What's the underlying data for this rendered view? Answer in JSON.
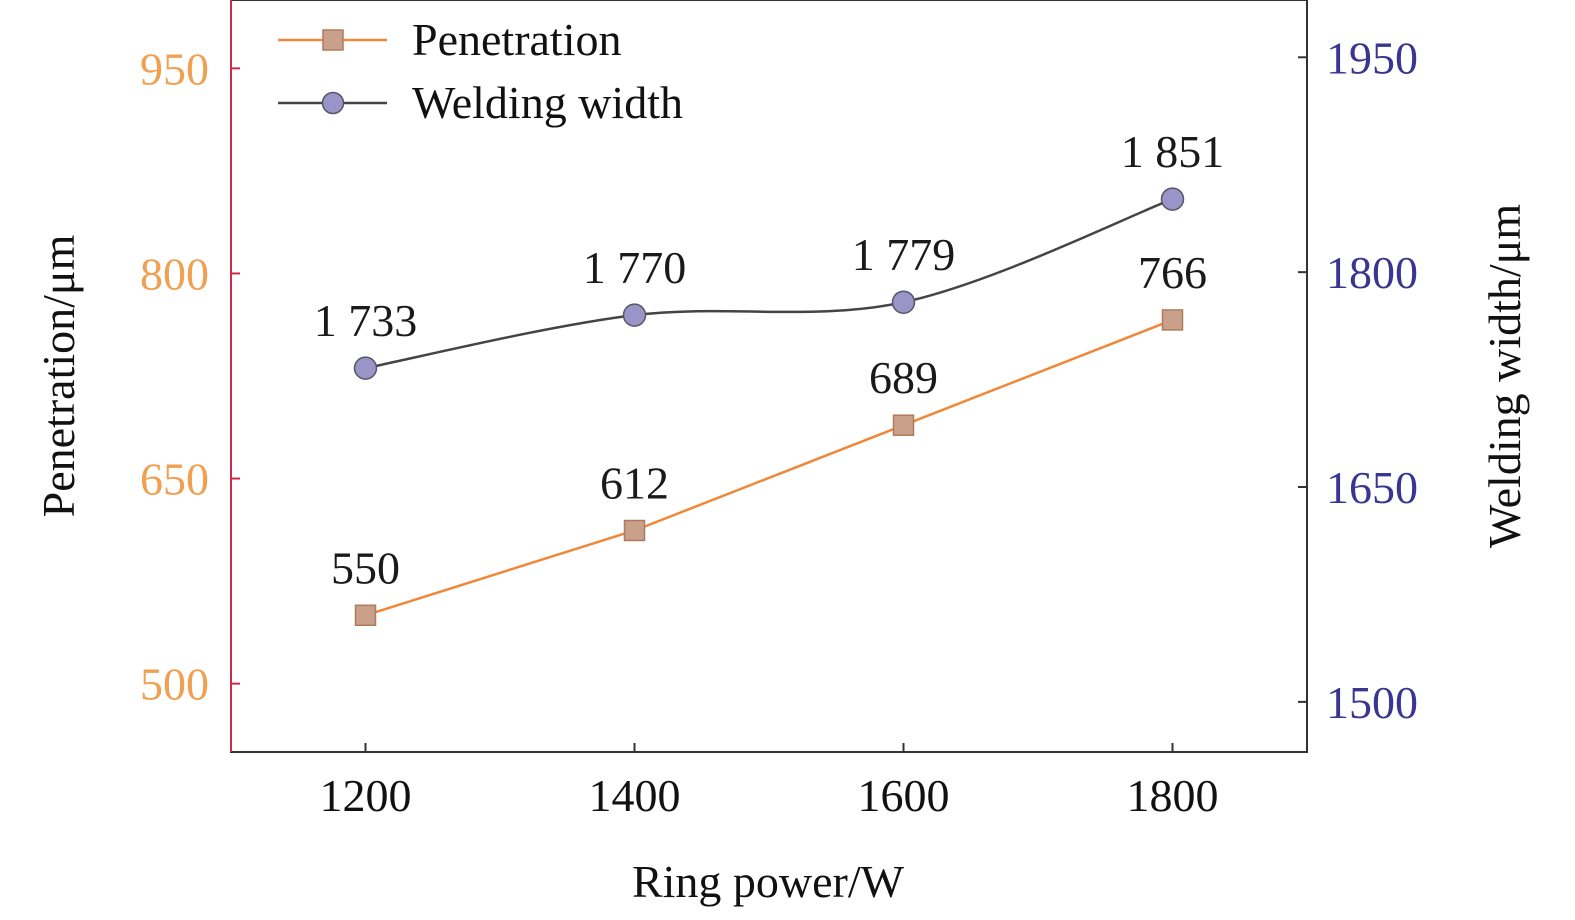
{
  "chart_data": {
    "type": "line",
    "x": [
      1200,
      1400,
      1600,
      1800
    ],
    "x_ticks": [
      "1200",
      "1400",
      "1600",
      "1800"
    ],
    "xlim": [
      1100,
      1900
    ],
    "xlabel": "Ring power/W",
    "ylabel_left": "Penetration/μm",
    "ylabel_right": "Welding width/μm",
    "ylim_left": [
      450,
      1000
    ],
    "ylim_right": [
      1465,
      1990
    ],
    "yticks_left": [
      "500",
      "650",
      "800",
      "950"
    ],
    "yticks_right": [
      "1500",
      "1650",
      "1800",
      "1950"
    ],
    "yticks_left_values": [
      500,
      650,
      800,
      950
    ],
    "yticks_right_values": [
      1500,
      1650,
      1800,
      1950
    ],
    "grid": false,
    "legend_position": "top-left",
    "series": [
      {
        "name": "Penetration",
        "axis": "left",
        "values": [
          550,
          612,
          689,
          766
        ],
        "labels": [
          "550",
          "612",
          "689",
          "766"
        ],
        "marker": "square",
        "line_color": "#f0883a",
        "marker_fill": "#c9a08a",
        "marker_stroke": "#b07a5c"
      },
      {
        "name": "Welding width",
        "axis": "right",
        "values": [
          1733,
          1770,
          1779,
          1851
        ],
        "labels": [
          "1 733",
          "1 770",
          "1 779",
          "1 851"
        ],
        "marker": "circle",
        "line_color": "#444444",
        "marker_fill": "#9a94c8",
        "marker_stroke": "#555566"
      }
    ],
    "colors": {
      "left_tick": "#f0a050",
      "right_tick": "#3a3590",
      "left_spine": "#cc2a4a",
      "frame": "#333333"
    }
  }
}
